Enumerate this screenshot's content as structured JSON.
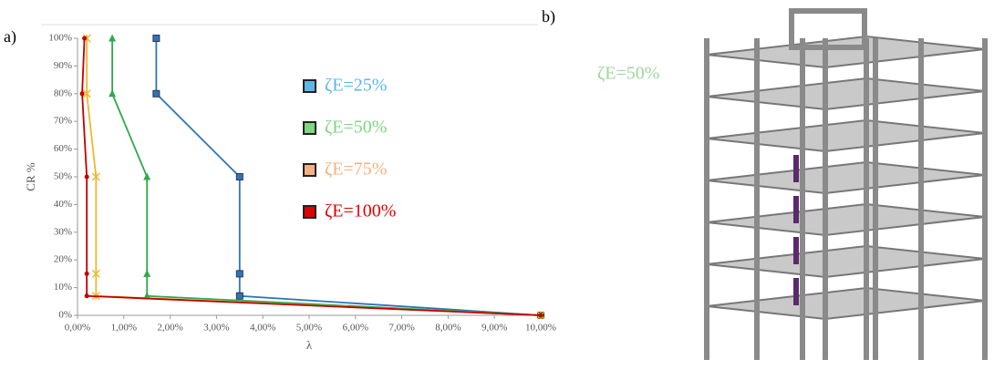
{
  "panel_labels": [
    "a)",
    "b)"
  ],
  "image_annotation": "ζE=50%",
  "chart_data": {
    "type": "line",
    "xlabel": "λ",
    "ylabel": "CR %",
    "xlim": [
      0,
      10
    ],
    "ylim": [
      0,
      100
    ],
    "xticks": [
      {
        "value": 0,
        "label": "0,00%"
      },
      {
        "value": 1,
        "label": "1,00%"
      },
      {
        "value": 2,
        "label": "2,00%"
      },
      {
        "value": 3,
        "label": "3,00%"
      },
      {
        "value": 4,
        "label": "4,00%"
      },
      {
        "value": 5,
        "label": "5,00%"
      },
      {
        "value": 6,
        "label": "6,00%"
      },
      {
        "value": 7,
        "label": "7,00%"
      },
      {
        "value": 8,
        "label": "8,00%"
      },
      {
        "value": 9,
        "label": "9,00%"
      },
      {
        "value": 10,
        "label": "10,00%"
      }
    ],
    "yticks": [
      {
        "value": 0,
        "label": "0%"
      },
      {
        "value": 10,
        "label": "10%"
      },
      {
        "value": 20,
        "label": "20%"
      },
      {
        "value": 30,
        "label": "30%"
      },
      {
        "value": 40,
        "label": "40%"
      },
      {
        "value": 50,
        "label": "50%"
      },
      {
        "value": 60,
        "label": "60%"
      },
      {
        "value": 70,
        "label": "70%"
      },
      {
        "value": 80,
        "label": "80%"
      },
      {
        "value": 90,
        "label": "90%"
      },
      {
        "value": 100,
        "label": "100%"
      }
    ],
    "series": [
      {
        "name": "ζE=25%",
        "color": "#2e75b6",
        "legend_color": "#5bb8e8",
        "marker": "square",
        "x": [
          10,
          3.5,
          3.5,
          3.5,
          1.7,
          1.7
        ],
        "values": [
          0,
          7,
          15,
          50,
          80,
          100
        ]
      },
      {
        "name": "ζE=50%",
        "color": "#2eaa4a",
        "legend_color": "#7fd67f",
        "marker": "triangle",
        "x": [
          10,
          1.5,
          1.5,
          1.5,
          0.75,
          0.75
        ],
        "values": [
          0,
          7,
          15,
          50,
          80,
          100
        ]
      },
      {
        "name": "ζE=75%",
        "color": "#f0b82a",
        "legend_color": "#f4b183",
        "marker": "star",
        "x": [
          10,
          0.4,
          0.4,
          0.4,
          0.2,
          0.2
        ],
        "values": [
          0,
          7,
          15,
          50,
          80,
          100
        ]
      },
      {
        "name": "ζE=100%",
        "color": "#c00000",
        "legend_color": "#e00000",
        "marker": "circle",
        "x": [
          10,
          0.2,
          0.2,
          0.2,
          0.1,
          0.15
        ],
        "values": [
          0,
          7,
          15,
          50,
          80,
          100
        ]
      }
    ]
  }
}
